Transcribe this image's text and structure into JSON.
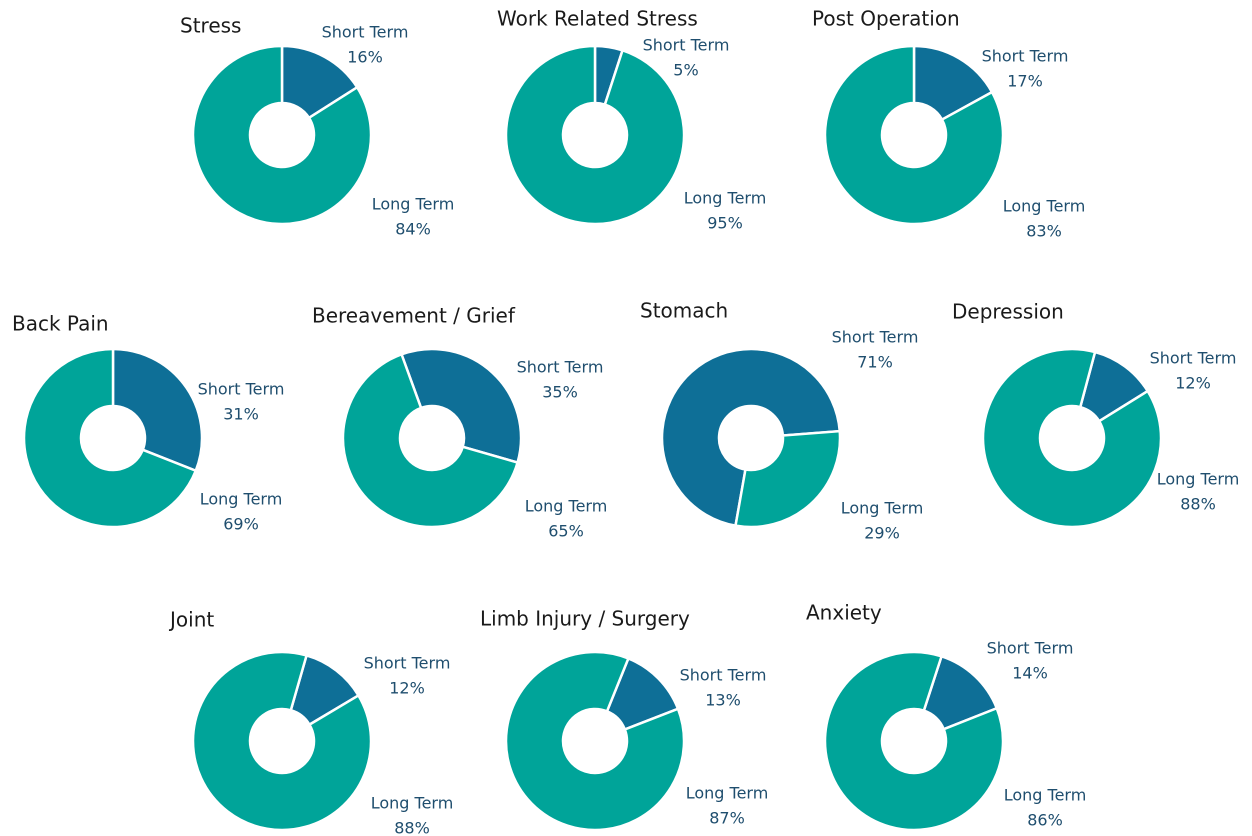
{
  "chart_data": [
    {
      "type": "pie",
      "title": "Stress",
      "categories": [
        "Short Term",
        "Long Term"
      ],
      "values": [
        16,
        84
      ],
      "value_labels": [
        "16%",
        "84%"
      ],
      "colors": [
        "#0e6f97",
        "#00a499"
      ],
      "start_angle": 0
    },
    {
      "type": "pie",
      "title": "Work Related Stress",
      "categories": [
        "Short Term",
        "Long Term"
      ],
      "values": [
        5,
        95
      ],
      "value_labels": [
        "5%",
        "95%"
      ],
      "colors": [
        "#0e6f97",
        "#00a499"
      ],
      "start_angle": 0
    },
    {
      "type": "pie",
      "title": "Post Operation",
      "categories": [
        "Short Term",
        "Long Term"
      ],
      "values": [
        17,
        83
      ],
      "value_labels": [
        "17%",
        "83%"
      ],
      "colors": [
        "#0e6f97",
        "#00a499"
      ],
      "start_angle": 0
    },
    {
      "type": "pie",
      "title": "Back Pain",
      "categories": [
        "Short Term",
        "Long Term"
      ],
      "values": [
        31,
        69
      ],
      "value_labels": [
        "31%",
        "69%"
      ],
      "colors": [
        "#0e6f97",
        "#00a499"
      ],
      "start_angle": 0
    },
    {
      "type": "pie",
      "title": "Bereavement / Grief",
      "categories": [
        "Short Term",
        "Long Term"
      ],
      "values": [
        35,
        65
      ],
      "value_labels": [
        "35%",
        "65%"
      ],
      "colors": [
        "#0e6f97",
        "#00a499"
      ],
      "start_angle": -20
    },
    {
      "type": "pie",
      "title": "Stomach",
      "categories": [
        "Short Term",
        "Long Term"
      ],
      "values": [
        71,
        29
      ],
      "value_labels": [
        "71%",
        "29%"
      ],
      "colors": [
        "#0e6f97",
        "#00a499"
      ],
      "start_angle": 190
    },
    {
      "type": "pie",
      "title": "Depression",
      "categories": [
        "Short Term",
        "Long Term"
      ],
      "values": [
        12,
        88
      ],
      "value_labels": [
        "12%",
        "88%"
      ],
      "colors": [
        "#0e6f97",
        "#00a499"
      ],
      "start_angle": 15
    },
    {
      "type": "pie",
      "title": "Joint",
      "categories": [
        "Short Term",
        "Long Term"
      ],
      "values": [
        12,
        88
      ],
      "value_labels": [
        "12%",
        "88%"
      ],
      "colors": [
        "#0e6f97",
        "#00a499"
      ],
      "start_angle": 16
    },
    {
      "type": "pie",
      "title": "Limb Injury / Surgery",
      "categories": [
        "Short Term",
        "Long Term"
      ],
      "values": [
        13,
        87
      ],
      "value_labels": [
        "13%",
        "87%"
      ],
      "colors": [
        "#0e6f97",
        "#00a499"
      ],
      "start_angle": 22
    },
    {
      "type": "pie",
      "title": "Anxiety",
      "categories": [
        "Short Term",
        "Long Term"
      ],
      "values": [
        14,
        86
      ],
      "value_labels": [
        "14%",
        "86%"
      ],
      "colors": [
        "#0e6f97",
        "#00a499"
      ],
      "start_angle": 18
    }
  ]
}
